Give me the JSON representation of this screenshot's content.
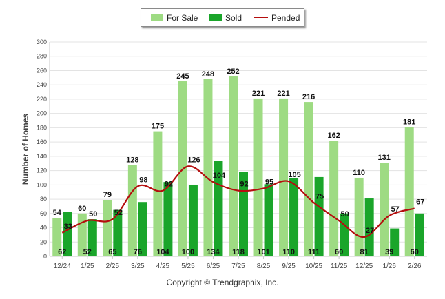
{
  "colors": {
    "for_sale": "#9edb83",
    "sold": "#1aa52a",
    "pended": "#b50e0e",
    "grid": "#e3e3e3"
  },
  "legend": {
    "for_sale": "For Sale",
    "sold": "Sold",
    "pended": "Pended"
  },
  "copyright": "Copyright © Trendgraphix, Inc.",
  "chart_data": {
    "type": "bar",
    "title": "",
    "xlabel": "",
    "ylabel": "Number of Homes",
    "ylim": [
      0,
      300
    ],
    "ytick_step": 20,
    "grid": true,
    "legend_position": "top-center",
    "categories": [
      "12/24",
      "1/25",
      "2/25",
      "3/25",
      "4/25",
      "5/25",
      "6/25",
      "7/25",
      "8/25",
      "9/25",
      "10/25",
      "11/25",
      "12/25",
      "1/26",
      "2/26"
    ],
    "series": [
      {
        "name": "For Sale",
        "type": "bar",
        "values": [
          54,
          60,
          79,
          128,
          175,
          245,
          248,
          252,
          221,
          221,
          216,
          162,
          110,
          131,
          181
        ]
      },
      {
        "name": "Sold",
        "type": "bar",
        "values": [
          62,
          52,
          65,
          76,
          104,
          100,
          134,
          118,
          101,
          110,
          111,
          60,
          81,
          39,
          60
        ]
      },
      {
        "name": "Pended",
        "type": "line",
        "values": [
          33,
          50,
          52,
          98,
          92,
          126,
          104,
          92,
          95,
          105,
          75,
          50,
          27,
          57,
          67
        ]
      }
    ]
  }
}
